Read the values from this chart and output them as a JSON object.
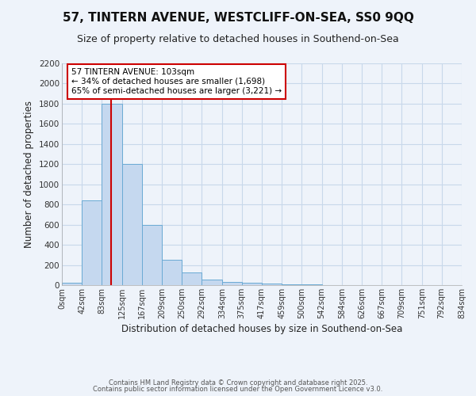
{
  "title_line1": "57, TINTERN AVENUE, WESTCLIFF-ON-SEA, SS0 9QQ",
  "title_line2": "Size of property relative to detached houses in Southend-on-Sea",
  "xlabel": "Distribution of detached houses by size in Southend-on-Sea",
  "ylabel": "Number of detached properties",
  "annotation_line1": "57 TINTERN AVENUE: 103sqm",
  "annotation_line2": "← 34% of detached houses are smaller (1,698)",
  "annotation_line3": "65% of semi-detached houses are larger (3,221) →",
  "bar_edges": [
    0,
    42,
    83,
    125,
    167,
    209,
    250,
    292,
    334,
    375,
    417,
    459,
    500,
    542,
    584,
    626,
    667,
    709,
    751,
    792,
    834
  ],
  "bar_heights": [
    25,
    840,
    1800,
    1200,
    600,
    255,
    125,
    55,
    35,
    25,
    15,
    10,
    10,
    0,
    0,
    0,
    0,
    0,
    0,
    0
  ],
  "bar_color": "#c5d8ef",
  "bar_edge_color": "#6aaad4",
  "red_line_x": 103,
  "red_line_color": "#cc0000",
  "annotation_box_edge_color": "#cc0000",
  "annotation_box_face_color": "#ffffff",
  "grid_color": "#c8d8ea",
  "background_color": "#eef3fa",
  "ylim": [
    0,
    2200
  ],
  "yticks": [
    0,
    200,
    400,
    600,
    800,
    1000,
    1200,
    1400,
    1600,
    1800,
    2000,
    2200
  ],
  "tick_labels": [
    "0sqm",
    "42sqm",
    "83sqm",
    "125sqm",
    "167sqm",
    "209sqm",
    "250sqm",
    "292sqm",
    "334sqm",
    "375sqm",
    "417sqm",
    "459sqm",
    "500sqm",
    "542sqm",
    "584sqm",
    "626sqm",
    "667sqm",
    "709sqm",
    "751sqm",
    "792sqm",
    "834sqm"
  ],
  "footer_line1": "Contains HM Land Registry data © Crown copyright and database right 2025.",
  "footer_line2": "Contains public sector information licensed under the Open Government Licence v3.0."
}
